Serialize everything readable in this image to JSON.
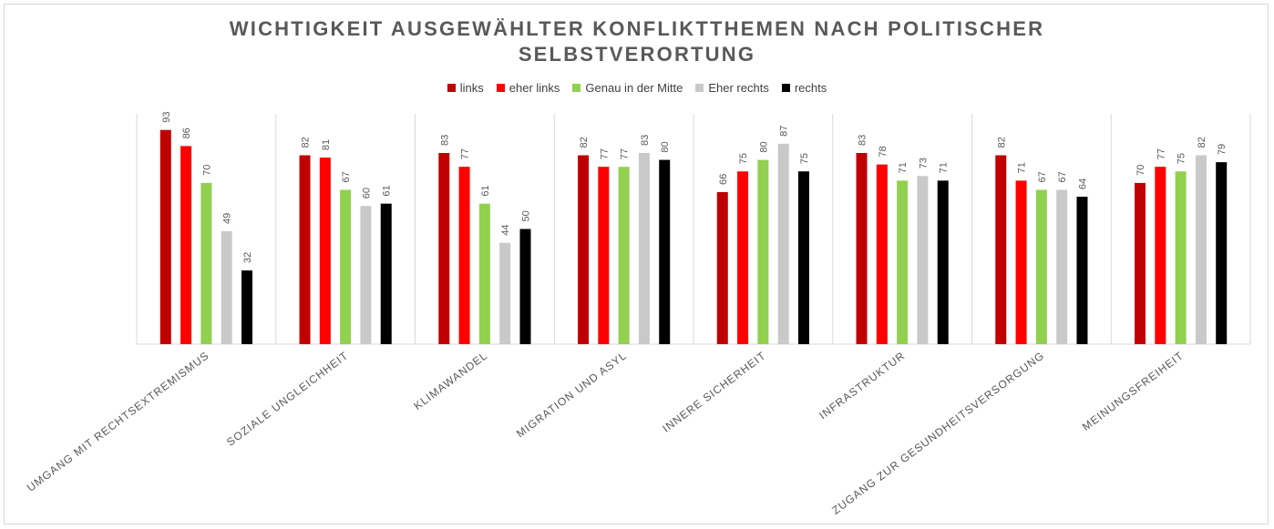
{
  "chart_data": {
    "type": "bar",
    "title": "WICHTIGKEIT AUSGEWÄHLTER KONFLIKTTHEMEN NACH POLITISCHER SELBSTVERORTUNG",
    "categories": [
      "UMGANG MIT RECHTSEXTREMISMUS",
      "SOZIALE UNGLEICHHEIT",
      "KLIMAWANDEL",
      "MIGRATION UND ASYL",
      "INNERE SICHERHEIT",
      "INFRASTRUKTUR",
      "ZUGANG ZUR GESUNDHEITSVERSORGUNG",
      "MEINUNGSFREIHEIT"
    ],
    "series": [
      {
        "name": "links",
        "color": "#c00000",
        "values": [
          93,
          82,
          83,
          82,
          66,
          83,
          82,
          70
        ]
      },
      {
        "name": "eher links",
        "color": "#ff0000",
        "values": [
          86,
          81,
          77,
          77,
          75,
          78,
          71,
          77
        ]
      },
      {
        "name": "Genau in der Mitte",
        "color": "#92d050",
        "values": [
          70,
          67,
          61,
          77,
          80,
          71,
          67,
          75
        ]
      },
      {
        "name": "Eher rechts",
        "color": "#c9c9c9",
        "values": [
          49,
          60,
          44,
          83,
          87,
          73,
          67,
          82
        ]
      },
      {
        "name": "rechts",
        "color": "#000000",
        "values": [
          32,
          61,
          50,
          80,
          75,
          71,
          64,
          79
        ]
      }
    ],
    "legend": "top"
  }
}
